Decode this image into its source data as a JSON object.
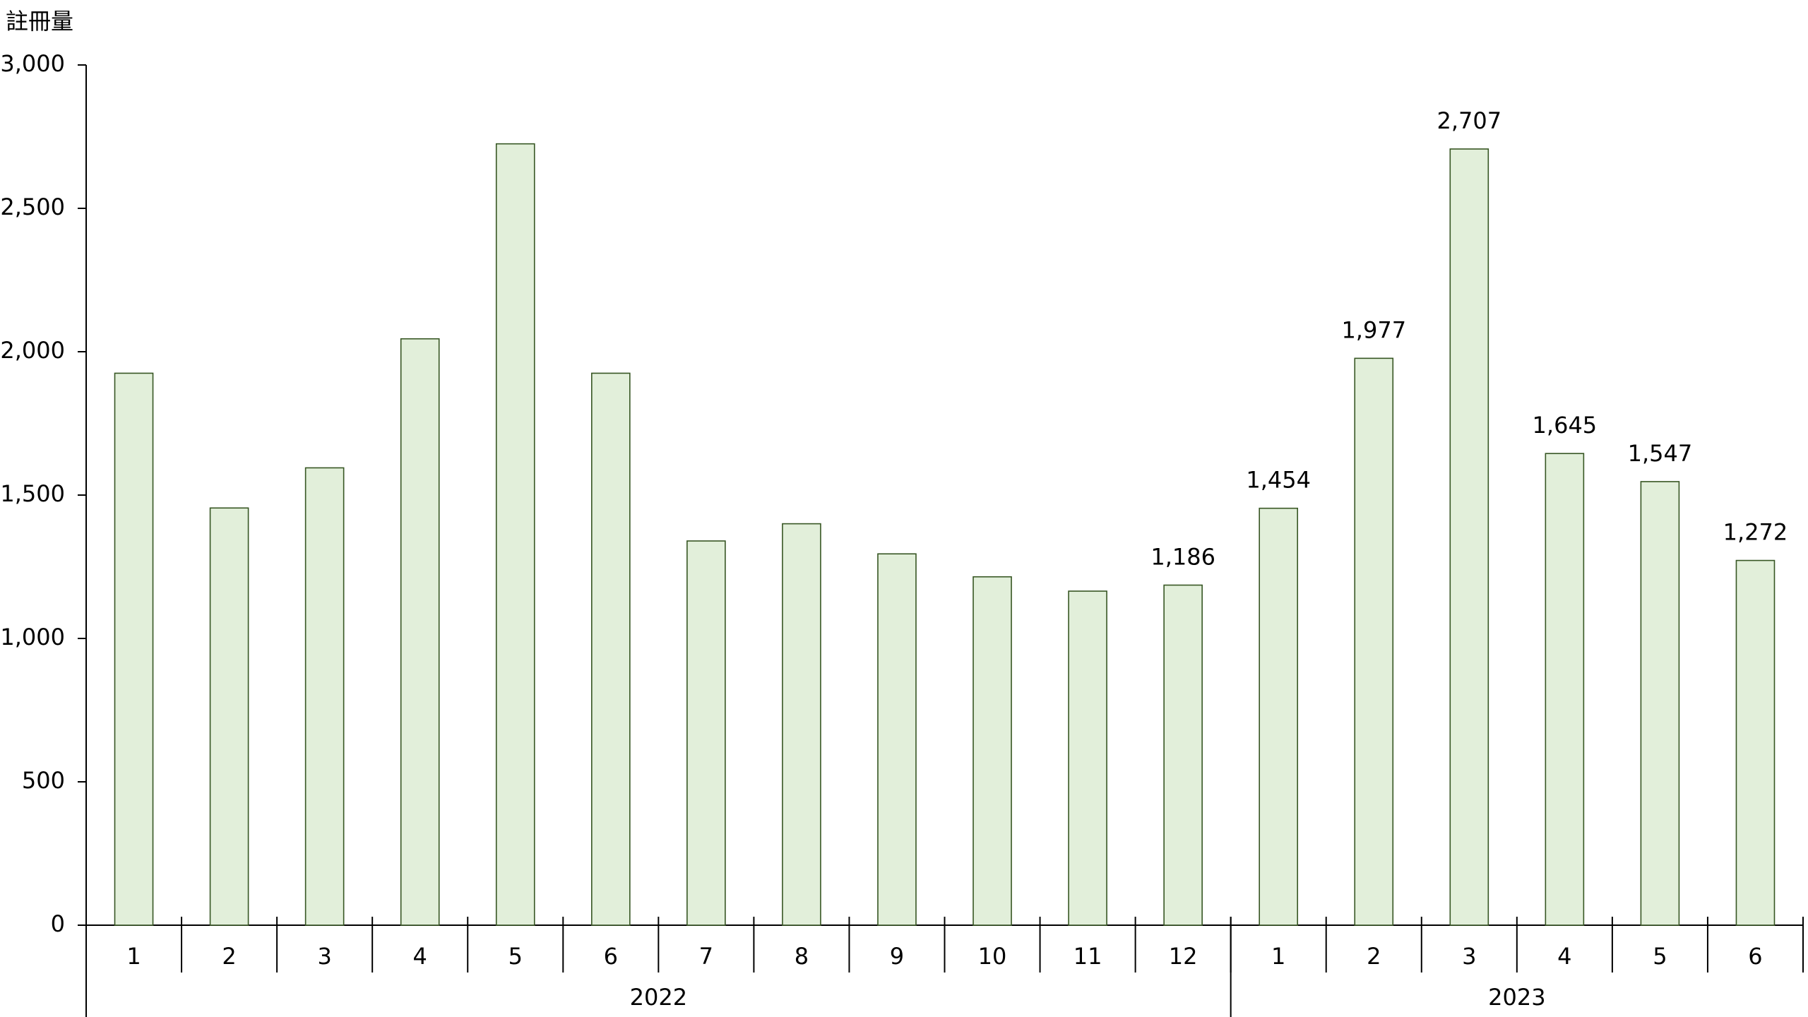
{
  "chart_data": {
    "type": "bar",
    "y_axis_label": "註冊量",
    "categories": [
      "1",
      "2",
      "3",
      "4",
      "5",
      "6",
      "7",
      "8",
      "9",
      "10",
      "11",
      "12",
      "1",
      "2",
      "3",
      "4",
      "5",
      "6"
    ],
    "groups": [
      {
        "label": "2022",
        "size": 12
      },
      {
        "label": "2023",
        "size": 6
      }
    ],
    "values": [
      1925,
      1455,
      1595,
      2045,
      2725,
      1925,
      1340,
      1400,
      1295,
      1215,
      1165,
      1186,
      1454,
      1977,
      2707,
      1645,
      1547,
      1272
    ],
    "value_labels": [
      null,
      null,
      null,
      null,
      null,
      null,
      null,
      null,
      null,
      null,
      null,
      "1,186",
      "1,454",
      "1,977",
      "2,707",
      "1,645",
      "1,547",
      "1,272"
    ],
    "color": "#e2efda",
    "edge_color": "#375623",
    "ylim": [
      0,
      3000
    ],
    "yticks": [
      0,
      500,
      {
        "value": 1000,
        "label": "1,000"
      },
      {
        "value": 1500,
        "label": "1,500"
      },
      {
        "value": 2000,
        "label": "2,000"
      },
      {
        "value": 2500,
        "label": "2,500"
      },
      {
        "value": 3000,
        "label": "3,000"
      }
    ],
    "grid": false
  }
}
